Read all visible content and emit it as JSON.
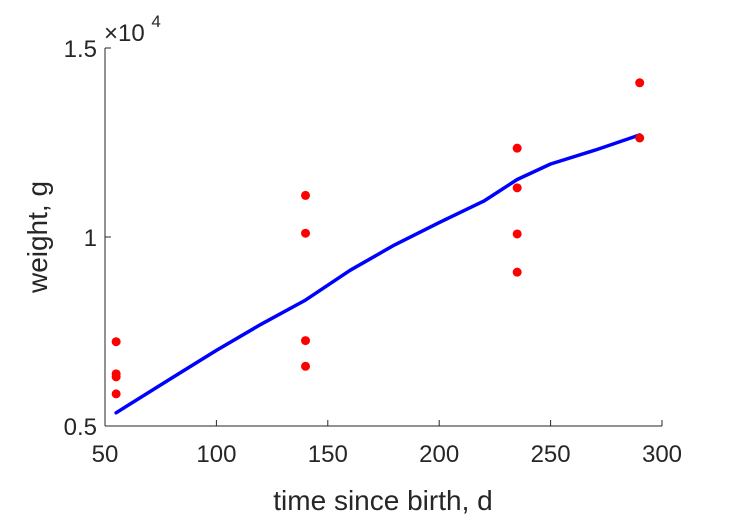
{
  "chart_data": {
    "type": "scatter",
    "xlabel": "time since birth, d",
    "ylabel": "weight, g",
    "xlim": [
      50,
      300
    ],
    "ylim": [
      5000,
      15000
    ],
    "x_ticks": [
      50,
      100,
      150,
      200,
      250,
      300
    ],
    "x_tick_labels": [
      "50",
      "100",
      "150",
      "200",
      "250",
      "300"
    ],
    "y_ticks": [
      5000,
      10000,
      15000
    ],
    "y_tick_labels": [
      "0.5",
      "1",
      "1.5"
    ],
    "y_exponent_label": {
      "base": "×10",
      "power": "4"
    },
    "grid": false,
    "series": [
      {
        "kind": "scatter",
        "color": "#ff0000",
        "points": [
          [
            55,
            7230
          ],
          [
            55,
            6380
          ],
          [
            55,
            6300
          ],
          [
            55,
            5850
          ],
          [
            140,
            11100
          ],
          [
            140,
            10100
          ],
          [
            140,
            7260
          ],
          [
            140,
            6580
          ],
          [
            235,
            12350
          ],
          [
            235,
            11300
          ],
          [
            235,
            10080
          ],
          [
            235,
            9070
          ],
          [
            290,
            14080
          ],
          [
            290,
            12620
          ]
        ]
      },
      {
        "kind": "line",
        "color": "#0000ff",
        "points": [
          [
            55,
            5350
          ],
          [
            80,
            6270
          ],
          [
            100,
            7000
          ],
          [
            120,
            7690
          ],
          [
            140,
            8330
          ],
          [
            160,
            9120
          ],
          [
            180,
            9790
          ],
          [
            200,
            10380
          ],
          [
            220,
            10950
          ],
          [
            235,
            11520
          ],
          [
            250,
            11930
          ],
          [
            270,
            12300
          ],
          [
            290,
            12700
          ]
        ]
      }
    ]
  }
}
